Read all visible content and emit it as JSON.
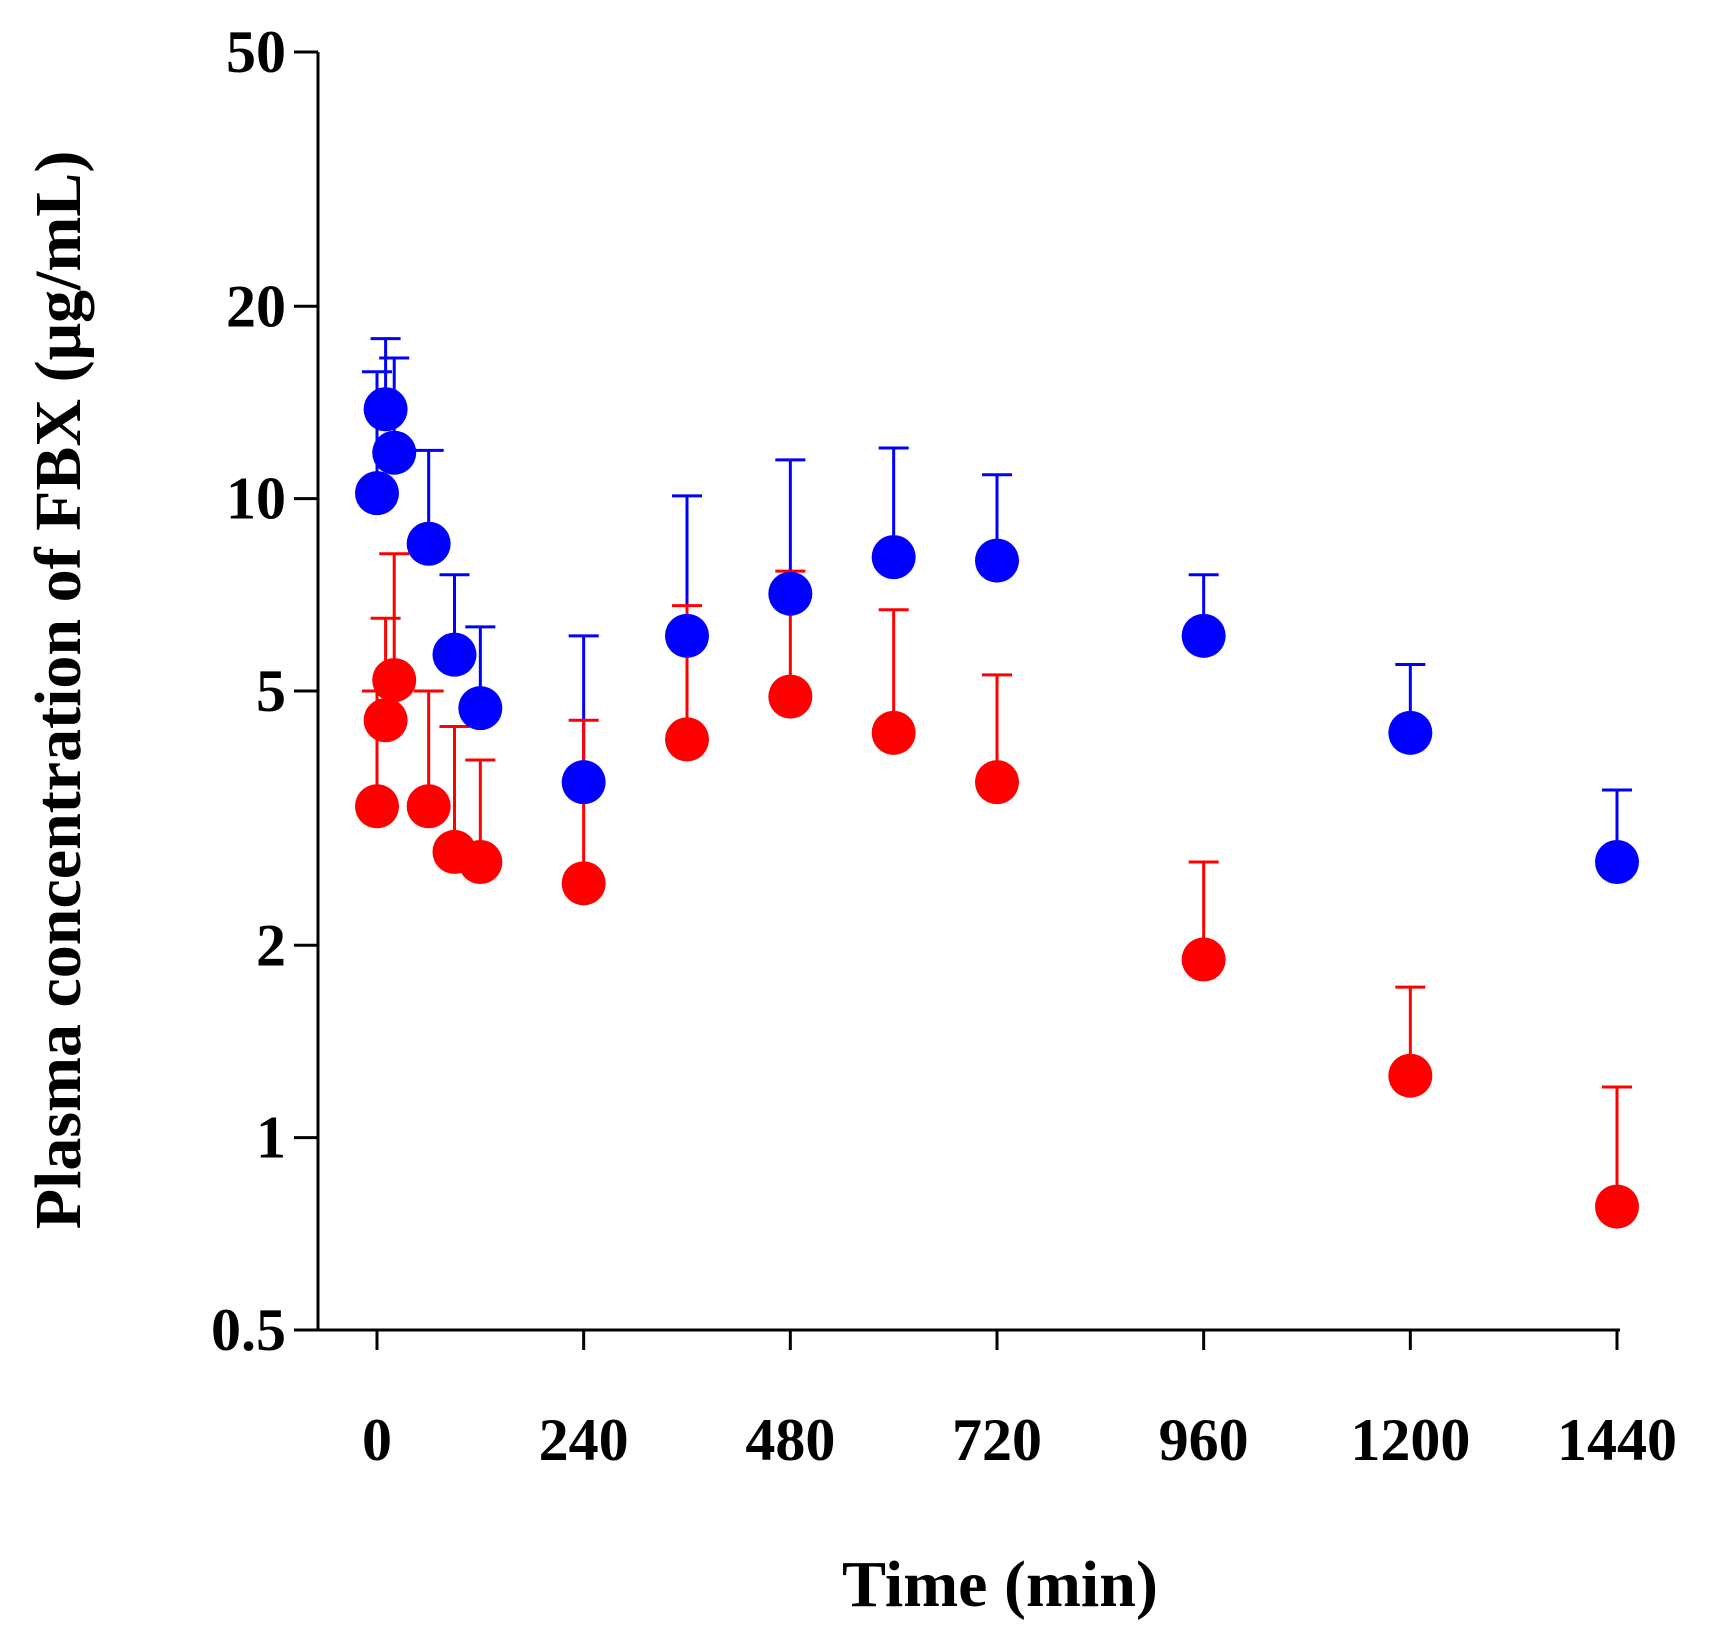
{
  "chart_data": {
    "type": "scatter",
    "title": "",
    "xlabel": "Time (min)",
    "ylabel": "Plasma concentration of  FBX (μg/mL)",
    "x_ticks": [
      0,
      240,
      480,
      720,
      960,
      1200,
      1440
    ],
    "y_ticks": [
      0.5,
      1,
      2,
      5,
      10,
      20,
      50
    ],
    "y_tick_labels": [
      "0.5",
      "1",
      "2",
      "5",
      "10",
      "20",
      "50"
    ],
    "y_scale": "log",
    "xlim": [
      0,
      1440
    ],
    "ylim": [
      0.5,
      50
    ],
    "grid": false,
    "legend": "none",
    "series": [
      {
        "color": "#0000ff",
        "x": [
          0,
          10,
          20,
          60,
          90,
          120,
          240,
          360,
          480,
          600,
          720,
          960,
          1200,
          1440
        ],
        "y": [
          10.2,
          13.8,
          11.8,
          8.5,
          5.7,
          4.7,
          3.6,
          6.1,
          7.1,
          8.1,
          8.0,
          6.1,
          4.3,
          2.7
        ],
        "err_upper": [
          15.8,
          17.8,
          16.6,
          11.9,
          7.6,
          6.3,
          6.1,
          10.1,
          11.5,
          12.0,
          10.9,
          7.6,
          5.5,
          3.5
        ]
      },
      {
        "color": "#ff0000",
        "x": [
          0,
          10,
          20,
          60,
          90,
          120,
          240,
          360,
          480,
          600,
          720,
          960,
          1200,
          1440
        ],
        "y": [
          3.3,
          4.5,
          5.2,
          3.3,
          2.8,
          2.7,
          2.5,
          4.2,
          4.9,
          4.3,
          3.6,
          1.9,
          1.25,
          0.78
        ],
        "err_upper": [
          5.0,
          6.5,
          8.2,
          5.0,
          4.4,
          3.9,
          4.5,
          6.8,
          7.7,
          6.7,
          5.3,
          2.7,
          1.72,
          1.2
        ]
      }
    ]
  }
}
